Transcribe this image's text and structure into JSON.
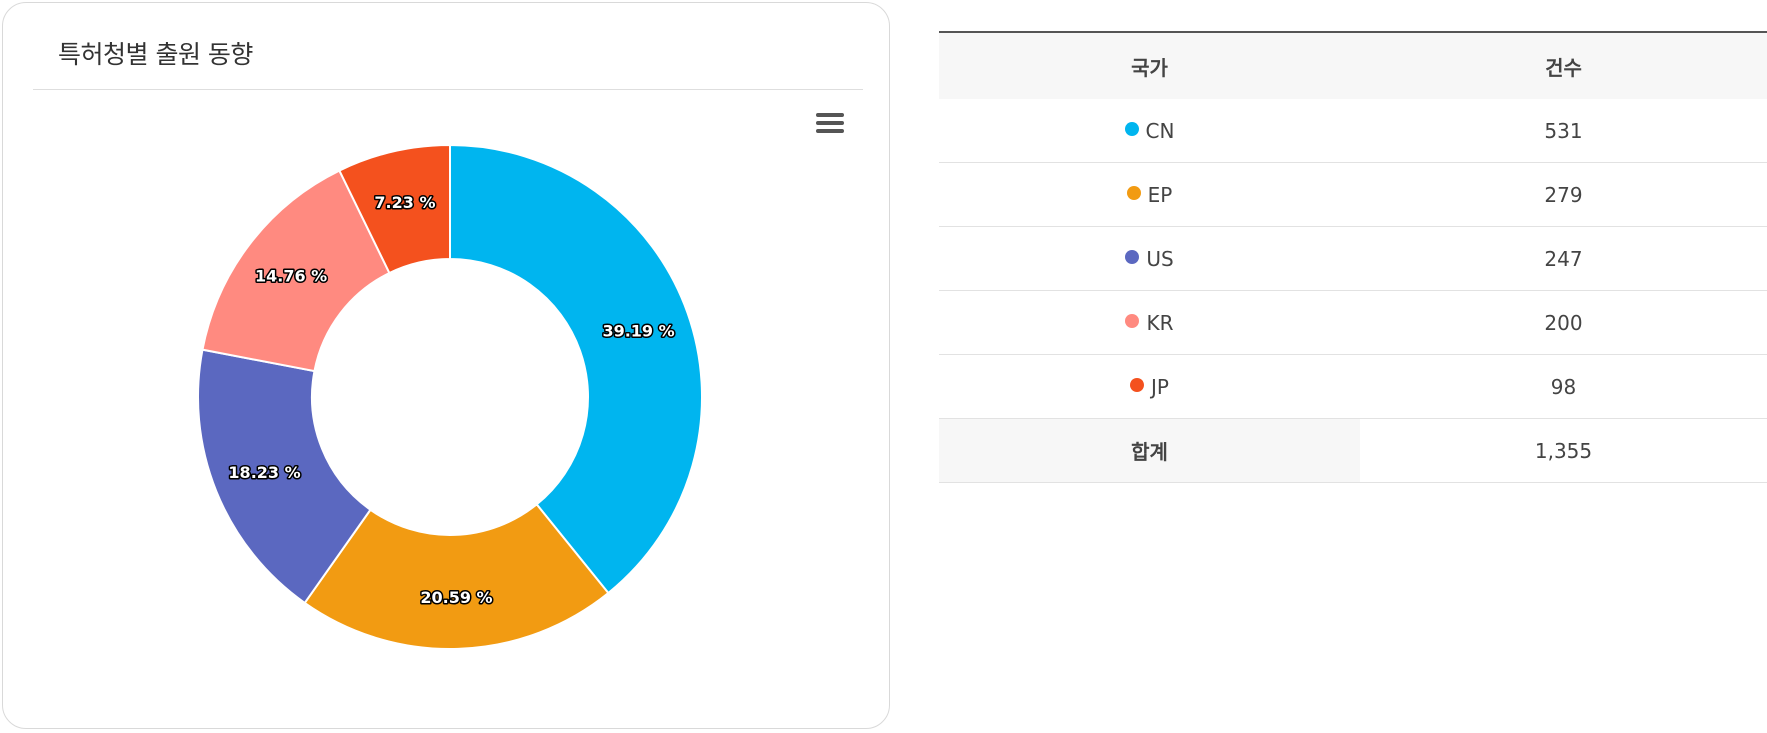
{
  "panel": {
    "title": "특허청별 출원 동향"
  },
  "chart_data": {
    "type": "pie",
    "donut": true,
    "slices": [
      {
        "label": "CN",
        "value": 531,
        "percent": "39.19 %",
        "color": "#00b5ef"
      },
      {
        "label": "EP",
        "value": 279,
        "percent": "20.59 %",
        "color": "#f29b12"
      },
      {
        "label": "US",
        "value": 247,
        "percent": "18.23 %",
        "color": "#5b68c0"
      },
      {
        "label": "KR",
        "value": 200,
        "percent": "14.76 %",
        "color": "#ff8a80"
      },
      {
        "label": "JP",
        "value": 98,
        "percent": "7.23 %",
        "color": "#f4511e"
      }
    ]
  },
  "table": {
    "headers": {
      "country": "국가",
      "count": "건수"
    },
    "rows": [
      {
        "country": "CN",
        "count": "531",
        "color": "#00b5ef"
      },
      {
        "country": "EP",
        "count": "279",
        "color": "#f29b12"
      },
      {
        "country": "US",
        "count": "247",
        "color": "#5b68c0"
      },
      {
        "country": "KR",
        "count": "200",
        "color": "#ff8a80"
      },
      {
        "country": "JP",
        "count": "98",
        "color": "#f4511e"
      }
    ],
    "total": {
      "label": "합계",
      "count": "1,355"
    }
  },
  "icons": {
    "menu": "hamburger-menu-icon"
  }
}
